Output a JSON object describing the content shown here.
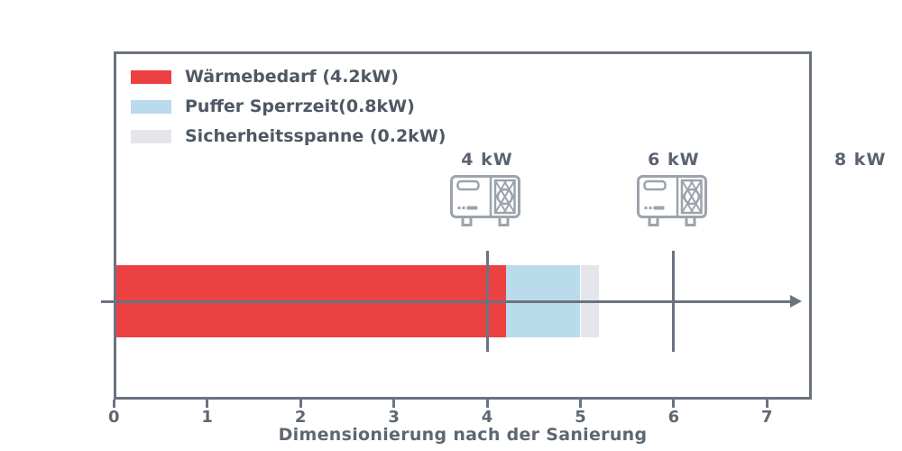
{
  "chart_data": {
    "type": "bar",
    "orientation": "horizontal",
    "stacked": true,
    "title": "",
    "xlabel": "Dimensionierung nach der Sanierung",
    "ylabel": "",
    "xlim": [
      0,
      7.48
    ],
    "x_ticks": [
      "0",
      "1",
      "2",
      "3",
      "4",
      "5",
      "6",
      "7"
    ],
    "grid": false,
    "legend_position": "upper-left",
    "axis_has_arrow": true,
    "bar": {
      "segments": [
        {
          "label": "Wärmebedarf (4.2kW)",
          "value": 4.2,
          "color": "#EC4143"
        },
        {
          "label": "Puffer Sperrzeit(0.8kW)",
          "value": 0.8,
          "color": "#B9DBEC"
        },
        {
          "label": "Sicherheitsspanne (0.2kW)",
          "value": 0.2,
          "color": "#E4E6EB"
        }
      ]
    },
    "markers": [
      {
        "value": 4,
        "label": "4 kW",
        "icon": "heat-pump-icon",
        "has_line": true
      },
      {
        "value": 6,
        "label": "6 kW",
        "icon": "heat-pump-icon",
        "has_line": true
      },
      {
        "value": 8,
        "label": "8 kW",
        "icon": null,
        "has_line": false
      }
    ]
  },
  "colors": {
    "axis": "#6B7280",
    "tick_text": "#5E6773",
    "legend_text": "#4F5864",
    "marker_text": "#5A6470",
    "icon_stroke": "#9CA3AB",
    "background": "#FFFFFF"
  }
}
